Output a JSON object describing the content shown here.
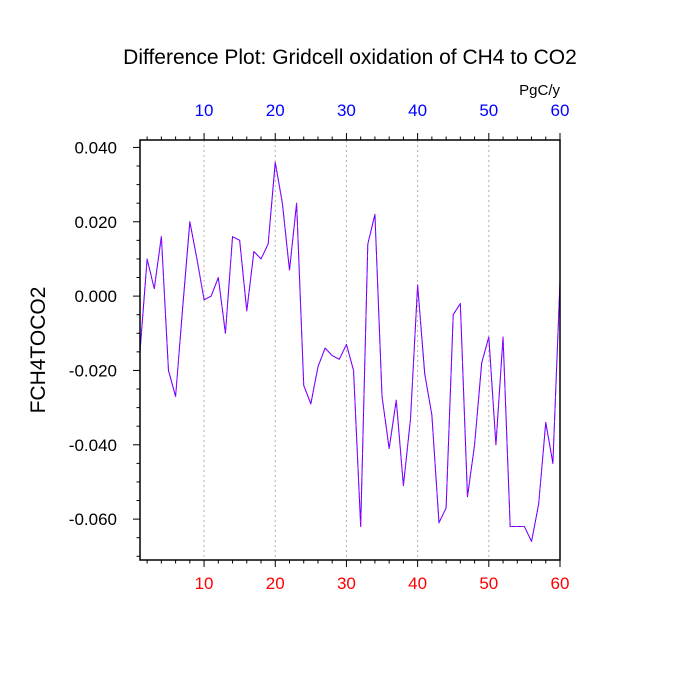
{
  "chart_data": {
    "type": "line",
    "title": "Difference Plot: Gridcell oxidation of CH4 to CO2",
    "ylabel": "FCH4TOCO2",
    "units": "PgC/y",
    "xlim": [
      1,
      60
    ],
    "ylim": [
      -0.071,
      0.042
    ],
    "x_ticks": [
      10,
      20,
      30,
      40,
      50,
      60
    ],
    "y_ticks": [
      0.04,
      0.02,
      0.0,
      -0.02,
      -0.04,
      -0.06
    ],
    "y_tick_labels": [
      "0.040",
      "0.020",
      "0.000",
      "-0.020",
      "-0.040",
      "-0.060"
    ],
    "grid": "vertical-dotted",
    "colors": {
      "series_line": "#3a00ff",
      "series_line_overlay": "#c000ff",
      "bottom_tick_labels": "#ff0000",
      "top_tick_labels": "#0000ff",
      "axis": "#000000",
      "grid": "#b0b0b0"
    },
    "series": [
      {
        "x": [
          1,
          2,
          3,
          4,
          5,
          6,
          7,
          8,
          9,
          10,
          11,
          12,
          13,
          14,
          15,
          16,
          17,
          18,
          19,
          20,
          21,
          22,
          23,
          24,
          25,
          26,
          27,
          28,
          29,
          30,
          31,
          32,
          33,
          34,
          35,
          36,
          37,
          38,
          39,
          40,
          41,
          42,
          43,
          44,
          45,
          46,
          47,
          48,
          49,
          50,
          51,
          52,
          53,
          54,
          55,
          56,
          57,
          58,
          59,
          60
        ],
        "values": [
          -0.015,
          0.01,
          0.002,
          0.016,
          -0.02,
          -0.027,
          -0.003,
          0.02,
          0.01,
          -0.001,
          0.0,
          0.005,
          -0.01,
          0.016,
          0.015,
          -0.004,
          0.012,
          0.01,
          0.014,
          0.036,
          0.025,
          0.007,
          0.025,
          -0.024,
          -0.029,
          -0.019,
          -0.014,
          -0.016,
          -0.017,
          -0.013,
          -0.02,
          -0.062,
          0.014,
          0.022,
          -0.027,
          -0.041,
          -0.028,
          -0.051,
          -0.033,
          0.003,
          -0.021,
          -0.032,
          -0.061,
          -0.057,
          -0.005,
          -0.002,
          -0.054,
          -0.04,
          -0.018,
          -0.011,
          -0.04,
          -0.011,
          -0.062,
          -0.062,
          -0.062,
          -0.066,
          -0.056,
          -0.034,
          -0.045,
          0.004
        ]
      }
    ]
  }
}
